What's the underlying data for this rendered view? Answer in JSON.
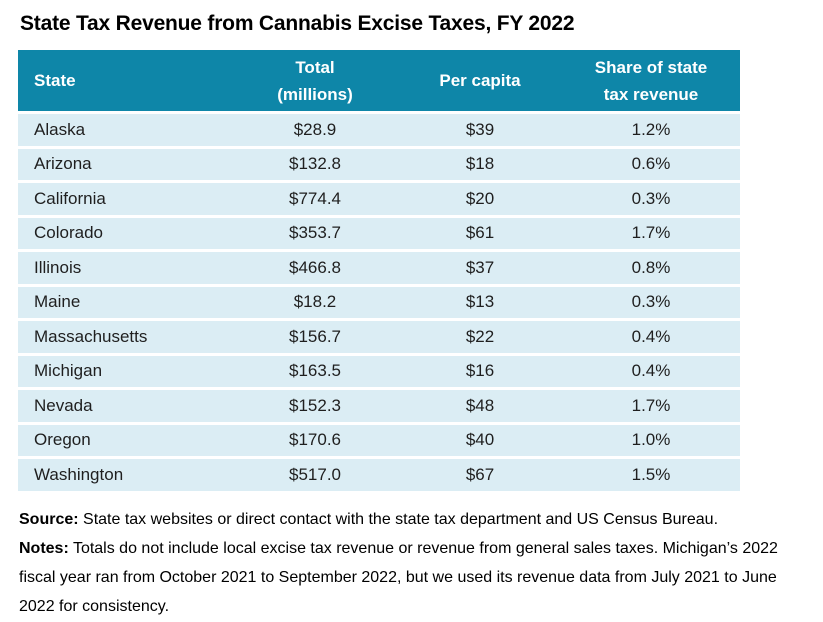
{
  "title": "State Tax Revenue from Cannabis Excise Taxes, FY 2022",
  "header": {
    "state": "State",
    "total_line1": "Total",
    "total_line2": "(millions)",
    "per_capita": "Per capita",
    "share_line1": "Share of state",
    "share_line2": "tax revenue"
  },
  "table": {
    "rows": [
      {
        "state": "Alaska",
        "total": "$28.9",
        "per_capita": "$39",
        "share": "1.2%"
      },
      {
        "state": "Arizona",
        "total": "$132.8",
        "per_capita": "$18",
        "share": "0.6%"
      },
      {
        "state": "California",
        "total": "$774.4",
        "per_capita": "$20",
        "share": "0.3%"
      },
      {
        "state": "Colorado",
        "total": "$353.7",
        "per_capita": "$61",
        "share": "1.7%"
      },
      {
        "state": "Illinois",
        "total": "$466.8",
        "per_capita": "$37",
        "share": "0.8%"
      },
      {
        "state": "Maine",
        "total": "$18.2",
        "per_capita": "$13",
        "share": "0.3%"
      },
      {
        "state": "Massachusetts",
        "total": "$156.7",
        "per_capita": "$22",
        "share": "0.4%"
      },
      {
        "state": "Michigan",
        "total": "$163.5",
        "per_capita": "$16",
        "share": "0.4%"
      },
      {
        "state": "Nevada",
        "total": "$152.3",
        "per_capita": "$48",
        "share": "1.7%"
      },
      {
        "state": "Oregon",
        "total": "$170.6",
        "per_capita": "$40",
        "share": "1.0%"
      },
      {
        "state": "Washington",
        "total": "$517.0",
        "per_capita": "$67",
        "share": "1.5%"
      }
    ]
  },
  "footnotes": {
    "source_label": "Source:",
    "source_text": " State tax websites or direct contact with the state tax department and US Census Bureau.",
    "notes_label": "Notes:",
    "notes_text": " Totals do not include local excise tax revenue or revenue from general sales taxes. Michigan’s 2022 fiscal year ran from October 2021 to September 2022, but we used its revenue data from July 2021 to June 2022 for consistency."
  },
  "colors": {
    "header_bg": "#0e86a8",
    "row_bg": "#dbedf4",
    "header_text": "#ffffff",
    "body_text": "#1f1f1f",
    "separator": "#ffffff"
  },
  "chart_data": {
    "type": "table",
    "title": "State Tax Revenue from Cannabis Excise Taxes, FY 2022",
    "columns": [
      "State",
      "Total (millions)",
      "Per capita",
      "Share of state tax revenue"
    ],
    "states": [
      "Alaska",
      "Arizona",
      "California",
      "Colorado",
      "Illinois",
      "Maine",
      "Massachusetts",
      "Michigan",
      "Nevada",
      "Oregon",
      "Washington"
    ],
    "total_millions_usd": [
      28.9,
      132.8,
      774.4,
      353.7,
      466.8,
      18.2,
      156.7,
      163.5,
      152.3,
      170.6,
      517.0
    ],
    "per_capita_usd": [
      39,
      18,
      20,
      61,
      37,
      13,
      22,
      16,
      48,
      40,
      67
    ],
    "share_of_state_tax_revenue_pct": [
      1.2,
      0.6,
      0.3,
      1.7,
      0.8,
      0.3,
      0.4,
      0.4,
      1.7,
      1.0,
      1.5
    ],
    "source": "State tax websites or direct contact with the state tax department and US Census Bureau.",
    "notes": "Totals do not include local excise tax revenue or revenue from general sales taxes. Michigan’s 2022 fiscal year ran from October 2021 to September 2022, but we used its revenue data from July 2021 to June 2022 for consistency."
  }
}
